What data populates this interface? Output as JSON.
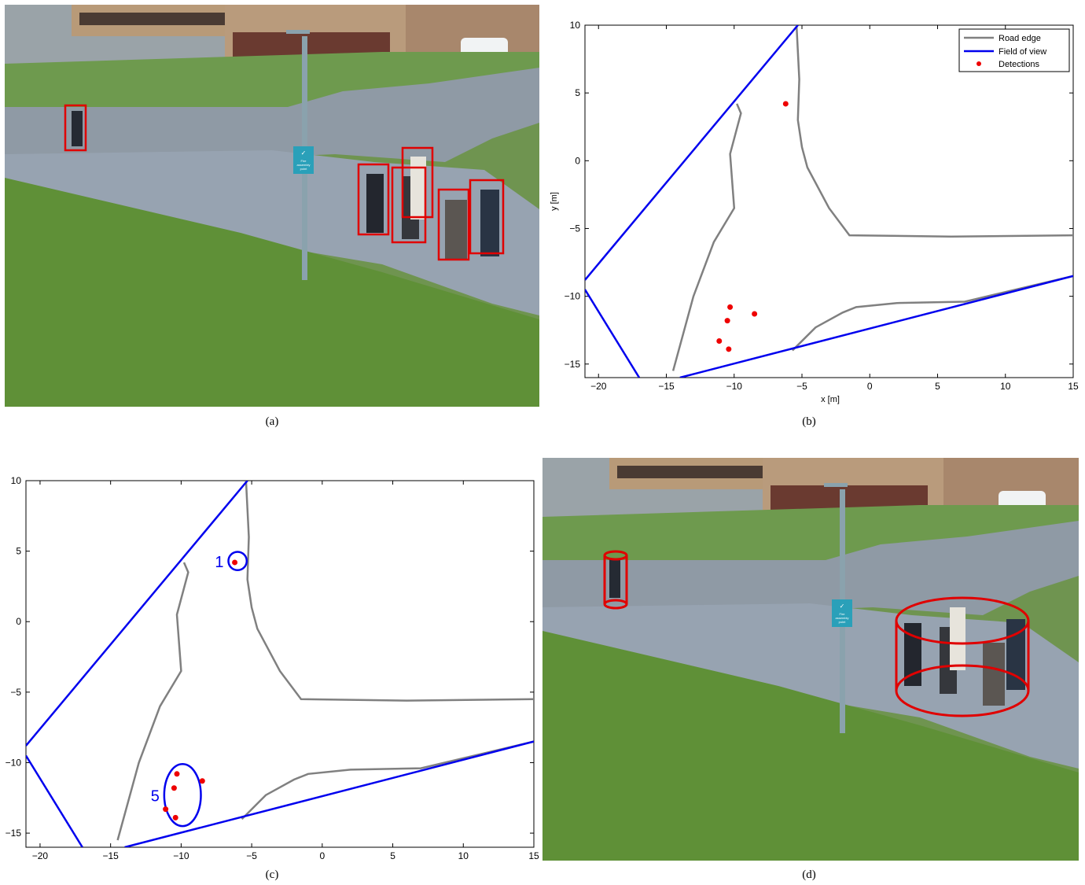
{
  "captions": {
    "a": "(a)",
    "b": "(b)",
    "c": "(c)",
    "d": "(d)"
  },
  "photo": {
    "sign_lines": [
      "✓",
      "Fire",
      "assembly",
      "point"
    ]
  },
  "colors": {
    "road_edge": "#808080",
    "field_of_view": "#0000ee",
    "detections": "#ee0000",
    "boxes": "#e00000"
  },
  "chart_data": [
    {
      "panel": "b",
      "type": "scatter",
      "xlabel": "x [m]",
      "ylabel": "y [m]",
      "xlim": [
        -21,
        15
      ],
      "ylim": [
        -16,
        10
      ],
      "xticks": [
        -20,
        -15,
        -10,
        -5,
        0,
        5,
        10,
        15
      ],
      "yticks": [
        -15,
        -10,
        -5,
        0,
        5,
        10
      ],
      "legend_position": "top-right",
      "series": [
        {
          "name": "Road edge",
          "kind": "line",
          "paths": [
            [
              [
                -5.4,
                10
              ],
              [
                -5.2,
                6
              ],
              [
                -5.3,
                3
              ],
              [
                -5,
                1
              ],
              [
                -4.6,
                -0.5
              ],
              [
                -3,
                -3.5
              ],
              [
                -1.5,
                -5.5
              ],
              [
                6,
                -5.6
              ],
              [
                15,
                -5.5
              ]
            ],
            [
              [
                -9.8,
                4.2
              ],
              [
                -9.5,
                3.5
              ],
              [
                -10.3,
                0.5
              ],
              [
                -10,
                -3.5
              ],
              [
                -11.5,
                -6
              ],
              [
                -13,
                -10
              ],
              [
                -14.5,
                -15.5
              ]
            ],
            [
              [
                -5.7,
                -14
              ],
              [
                -4,
                -12.3
              ],
              [
                -2,
                -11.2
              ],
              [
                -1,
                -10.8
              ],
              [
                2,
                -10.5
              ],
              [
                7,
                -10.4
              ],
              [
                15,
                -8.5
              ]
            ]
          ]
        },
        {
          "name": "Field of view",
          "kind": "line",
          "paths": [
            [
              [
                -21,
                -8.8
              ],
              [
                -5.3,
                10
              ]
            ],
            [
              [
                -21,
                -9.5
              ],
              [
                -17,
                -16
              ]
            ],
            [
              [
                -14,
                -16
              ],
              [
                15,
                -8.5
              ]
            ]
          ]
        },
        {
          "name": "Detections",
          "kind": "points",
          "x": [
            -6.2,
            -10.3,
            -10.5,
            -8.5,
            -11.1,
            -10.4
          ],
          "y": [
            4.2,
            -10.8,
            -11.8,
            -11.3,
            -13.3,
            -13.9
          ]
        }
      ]
    },
    {
      "panel": "c",
      "type": "scatter",
      "xlim": [
        -21,
        15
      ],
      "ylim": [
        -16,
        10
      ],
      "xticks": [
        -20,
        -15,
        -10,
        -5,
        0,
        5,
        10,
        15
      ],
      "yticks": [
        -15,
        -10,
        -5,
        0,
        5,
        10
      ],
      "series": [
        {
          "name": "",
          "kind": "points",
          "x": [
            -6.2,
            -10.3,
            -10.5,
            -8.5,
            -11.1,
            -10.4
          ],
          "y": [
            4.2,
            -10.8,
            -11.8,
            -11.3,
            -13.3,
            -13.9
          ]
        }
      ],
      "clusters": [
        {
          "label": "1",
          "cx": -6.0,
          "cy": 4.3,
          "rx": 0.65,
          "ry": 0.65
        },
        {
          "label": "5",
          "cx": -9.9,
          "cy": -12.3,
          "rx": 1.3,
          "ry": 2.2
        }
      ]
    }
  ]
}
